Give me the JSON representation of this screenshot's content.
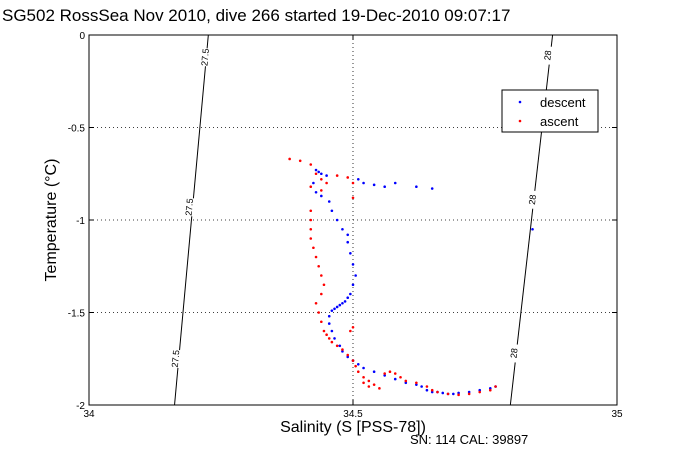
{
  "chart_data": {
    "type": "scatter",
    "title": "SG502 RossSea Nov 2010, dive 266 started 19-Dec-2010 09:07:17",
    "xlabel": "Salinity (S [PSS-78])",
    "ylabel": "Temperature (°C)",
    "xlim": [
      34,
      35
    ],
    "ylim": [
      -2,
      0
    ],
    "xticks": [
      "34",
      "34.5",
      "35"
    ],
    "yticks": [
      "0",
      "-0.5",
      "-1",
      "-1.5",
      "-2"
    ],
    "grid": "dotted",
    "legend_position": "top-right",
    "footer": "SN: 114  CAL: 39897",
    "isopycnals": [
      {
        "label": "27.5",
        "points": [
          [
            34.226,
            0
          ],
          [
            34.162,
            -2
          ]
        ],
        "label_positions": [
          [
            34.22,
            -0.12
          ],
          [
            34.19,
            -0.93
          ],
          [
            34.164,
            -1.75
          ]
        ]
      },
      {
        "label": "28",
        "points": [
          [
            34.878,
            0
          ],
          [
            34.798,
            -2
          ]
        ],
        "label_positions": [
          [
            34.869,
            -0.11
          ],
          [
            34.84,
            -0.89
          ],
          [
            34.805,
            -1.72
          ]
        ]
      }
    ],
    "series": [
      {
        "name": "descent",
        "color": "#0000ff",
        "points": [
          [
            34.43,
            -0.73
          ],
          [
            34.435,
            -0.74
          ],
          [
            34.44,
            -0.75
          ],
          [
            34.45,
            -0.76
          ],
          [
            34.425,
            -0.8
          ],
          [
            34.43,
            -0.85
          ],
          [
            34.44,
            -0.87
          ],
          [
            34.455,
            -0.9
          ],
          [
            34.46,
            -0.95
          ],
          [
            34.47,
            -1.0
          ],
          [
            34.48,
            -1.05
          ],
          [
            34.49,
            -1.08
          ],
          [
            34.49,
            -1.12
          ],
          [
            34.495,
            -1.18
          ],
          [
            34.5,
            -1.24
          ],
          [
            34.505,
            -1.3
          ],
          [
            34.5,
            -1.35
          ],
          [
            34.495,
            -1.4
          ],
          [
            34.49,
            -1.42
          ],
          [
            34.485,
            -1.44
          ],
          [
            34.48,
            -1.45
          ],
          [
            34.475,
            -1.46
          ],
          [
            34.47,
            -1.47
          ],
          [
            34.465,
            -1.48
          ],
          [
            34.46,
            -1.49
          ],
          [
            34.455,
            -1.52
          ],
          [
            34.455,
            -1.56
          ],
          [
            34.46,
            -1.6
          ],
          [
            34.465,
            -1.64
          ],
          [
            34.475,
            -1.68
          ],
          [
            34.48,
            -1.71
          ],
          [
            34.49,
            -1.74
          ],
          [
            34.5,
            -1.76
          ],
          [
            34.51,
            -1.78
          ],
          [
            34.52,
            -1.8
          ],
          [
            34.54,
            -1.82
          ],
          [
            34.56,
            -1.84
          ],
          [
            34.58,
            -1.86
          ],
          [
            34.6,
            -1.88
          ],
          [
            34.62,
            -1.89
          ],
          [
            34.63,
            -1.9
          ],
          [
            34.64,
            -1.92
          ],
          [
            34.65,
            -1.93
          ],
          [
            34.66,
            -1.93
          ],
          [
            34.67,
            -1.935
          ],
          [
            34.68,
            -1.94
          ],
          [
            34.69,
            -1.94
          ],
          [
            34.7,
            -1.935
          ],
          [
            34.72,
            -1.93
          ],
          [
            34.74,
            -1.92
          ],
          [
            34.76,
            -1.91
          ],
          [
            34.77,
            -1.9
          ],
          [
            34.51,
            -0.78
          ],
          [
            34.52,
            -0.8
          ],
          [
            34.54,
            -0.81
          ],
          [
            34.56,
            -0.82
          ],
          [
            34.58,
            -0.8
          ],
          [
            34.62,
            -0.82
          ],
          [
            34.65,
            -0.83
          ],
          [
            34.84,
            -1.05
          ]
        ]
      },
      {
        "name": "ascent",
        "color": "#ff0000",
        "points": [
          [
            34.38,
            -0.67
          ],
          [
            34.4,
            -0.68
          ],
          [
            34.42,
            -0.7
          ],
          [
            34.43,
            -0.75
          ],
          [
            34.44,
            -0.78
          ],
          [
            34.45,
            -0.8
          ],
          [
            34.47,
            -0.76
          ],
          [
            34.49,
            -0.77
          ],
          [
            34.5,
            -0.8
          ],
          [
            34.42,
            -0.82
          ],
          [
            34.44,
            -0.84
          ],
          [
            34.42,
            -0.95
          ],
          [
            34.42,
            -1.0
          ],
          [
            34.42,
            -1.05
          ],
          [
            34.42,
            -1.1
          ],
          [
            34.425,
            -1.15
          ],
          [
            34.43,
            -1.2
          ],
          [
            34.435,
            -1.25
          ],
          [
            34.44,
            -1.3
          ],
          [
            34.445,
            -1.35
          ],
          [
            34.44,
            -1.4
          ],
          [
            34.43,
            -1.45
          ],
          [
            34.435,
            -1.5
          ],
          [
            34.44,
            -1.55
          ],
          [
            34.445,
            -1.6
          ],
          [
            34.45,
            -1.62
          ],
          [
            34.455,
            -1.64
          ],
          [
            34.46,
            -1.66
          ],
          [
            34.47,
            -1.68
          ],
          [
            34.48,
            -1.7
          ],
          [
            34.49,
            -1.73
          ],
          [
            34.5,
            -1.76
          ],
          [
            34.505,
            -1.79
          ],
          [
            34.51,
            -1.82
          ],
          [
            34.52,
            -1.85
          ],
          [
            34.53,
            -1.87
          ],
          [
            34.54,
            -1.89
          ],
          [
            34.55,
            -1.91
          ],
          [
            34.56,
            -1.83
          ],
          [
            34.57,
            -1.82
          ],
          [
            34.58,
            -1.83
          ],
          [
            34.59,
            -1.85
          ],
          [
            34.6,
            -1.87
          ],
          [
            34.62,
            -1.88
          ],
          [
            34.64,
            -1.9
          ],
          [
            34.65,
            -1.92
          ],
          [
            34.66,
            -1.93
          ],
          [
            34.68,
            -1.94
          ],
          [
            34.7,
            -1.945
          ],
          [
            34.72,
            -1.94
          ],
          [
            34.74,
            -1.93
          ],
          [
            34.76,
            -1.92
          ],
          [
            34.77,
            -1.9
          ],
          [
            34.5,
            -0.88
          ],
          [
            34.5,
            -1.58
          ],
          [
            34.495,
            -1.6
          ],
          [
            34.52,
            -1.88
          ],
          [
            34.53,
            -1.9
          ]
        ]
      }
    ]
  }
}
